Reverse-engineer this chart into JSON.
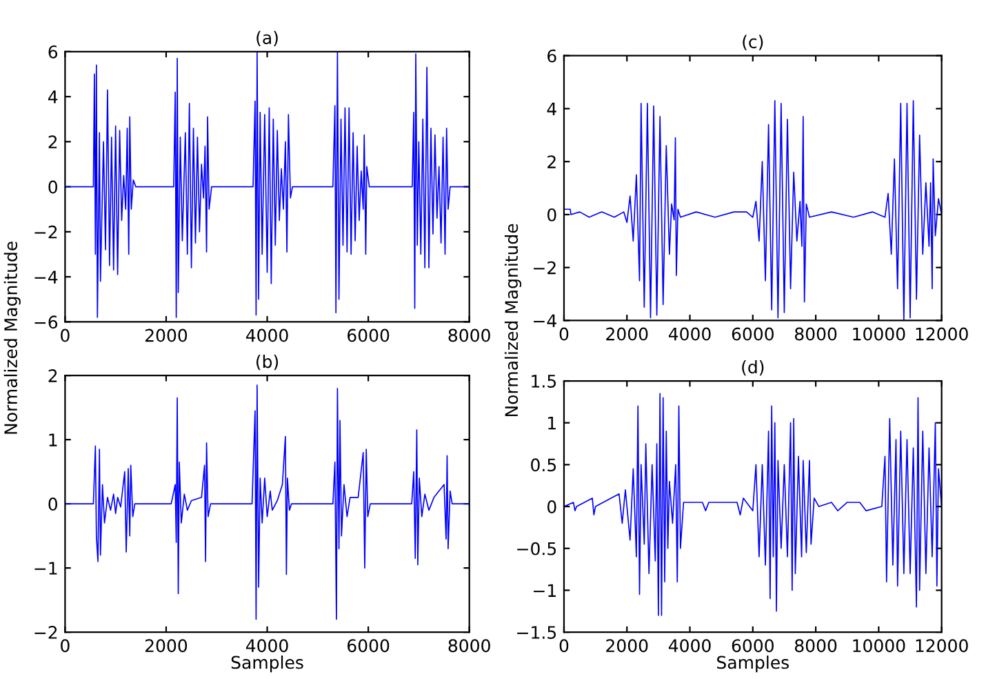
{
  "chart_data": [
    {
      "type": "line",
      "title": "(a)",
      "ylabel": "Normalized Magnitude",
      "xlim": [
        0,
        8000
      ],
      "ylim": [
        -6,
        6
      ],
      "xticks": [
        0,
        2000,
        4000,
        6000,
        8000
      ],
      "yticks": [
        -6,
        -4,
        -2,
        0,
        2,
        4,
        6
      ],
      "grid": false,
      "series": [
        {
          "color": "#0000ff",
          "x": [
            0,
            560,
            580,
            600,
            620,
            640,
            680,
            700,
            760,
            800,
            840,
            880,
            920,
            960,
            1000,
            1040,
            1080,
            1120,
            1160,
            1200,
            1230,
            1260,
            1280,
            1310,
            1350,
            1400,
            2150,
            2180,
            2200,
            2220,
            2240,
            2280,
            2320,
            2380,
            2420,
            2460,
            2500,
            2540,
            2580,
            2620,
            2660,
            2700,
            2740,
            2770,
            2800,
            2820,
            2850,
            2900,
            3720,
            3760,
            3780,
            3800,
            3830,
            3860,
            3900,
            3950,
            4000,
            4040,
            4080,
            4120,
            4160,
            4200,
            4240,
            4280,
            4320,
            4360,
            4390,
            4420,
            4460,
            4500,
            5300,
            5340,
            5360,
            5390,
            5420,
            5460,
            5500,
            5540,
            5580,
            5620,
            5660,
            5700,
            5740,
            5780,
            5820,
            5860,
            5900,
            5920,
            5950,
            5970,
            6020,
            6870,
            6900,
            6920,
            6940,
            6970,
            7000,
            7040,
            7080,
            7120,
            7160,
            7200,
            7240,
            7280,
            7320,
            7360,
            7400,
            7440,
            7480,
            7520,
            7550,
            7580,
            7620,
            8000
          ],
          "values": [
            0,
            0,
            5.0,
            -3.0,
            5.4,
            -5.8,
            2.4,
            -4.2,
            2.0,
            -2.8,
            4.3,
            -3.5,
            2.2,
            -3.7,
            2.7,
            -3.9,
            2.5,
            -1.5,
            0.5,
            -1.0,
            2.6,
            -3.0,
            3.1,
            -1.0,
            0.3,
            0,
            0,
            4.2,
            -5.8,
            5.7,
            -4.7,
            2.2,
            -2.4,
            2.4,
            -3.0,
            3.7,
            -3.6,
            2.6,
            -2.5,
            2.2,
            -2.0,
            1.0,
            -0.5,
            1.8,
            -2.9,
            3.1,
            -1.0,
            0,
            0,
            3.8,
            -5.7,
            6.0,
            -5.0,
            3.3,
            -3.0,
            3.2,
            -3.8,
            3.5,
            -4.3,
            3.0,
            -2.6,
            2.5,
            -1.5,
            0.8,
            -1.0,
            2.0,
            -2.9,
            3.2,
            -0.5,
            0,
            0,
            3.6,
            -5.6,
            6.0,
            -5.0,
            3.0,
            -2.6,
            3.5,
            -2.9,
            3.5,
            -3.0,
            2.4,
            -2.4,
            1.8,
            -1.5,
            0.7,
            -1.0,
            2.3,
            -3.0,
            0.9,
            0,
            0,
            3.3,
            -5.4,
            5.9,
            -2.6,
            2.0,
            -3.0,
            3.0,
            -3.6,
            5.3,
            -3.6,
            2.6,
            -2.1,
            2.3,
            -1.4,
            0.9,
            -2.5,
            2.2,
            -3.0,
            2.6,
            -1.0,
            0,
            0
          ]
        }
      ]
    },
    {
      "type": "line",
      "title": "(b)",
      "xlabel": "Samples",
      "xlim": [
        0,
        8000
      ],
      "ylim": [
        -2,
        2
      ],
      "xticks": [
        0,
        2000,
        4000,
        6000,
        8000
      ],
      "yticks": [
        -2,
        -1,
        0,
        1,
        2
      ],
      "grid": false,
      "series": [
        {
          "color": "#0000ff",
          "x": [
            0,
            560,
            600,
            620,
            650,
            680,
            700,
            740,
            780,
            840,
            900,
            960,
            1000,
            1040,
            1100,
            1180,
            1210,
            1250,
            1280,
            1300,
            1340,
            1380,
            2100,
            2180,
            2200,
            2220,
            2240,
            2260,
            2300,
            2360,
            2420,
            2500,
            2700,
            2760,
            2780,
            2800,
            2830,
            2880,
            3700,
            3760,
            3780,
            3800,
            3830,
            3860,
            3900,
            3950,
            4000,
            4060,
            4100,
            4200,
            4300,
            4360,
            4380,
            4400,
            4440,
            4480,
            5300,
            5340,
            5370,
            5390,
            5420,
            5440,
            5470,
            5520,
            5580,
            5640,
            5800,
            5900,
            5930,
            5960,
            5990,
            6040,
            6860,
            6900,
            6930,
            6960,
            6980,
            7010,
            7060,
            7120,
            7200,
            7300,
            7500,
            7540,
            7560,
            7580,
            7620,
            7660,
            8000
          ],
          "values": [
            0,
            0,
            0.9,
            -0.5,
            -0.9,
            0.85,
            -0.8,
            0.3,
            -0.3,
            0.1,
            -0.1,
            0.15,
            -0.15,
            0.1,
            -0.05,
            0.5,
            -0.75,
            0.55,
            -0.5,
            0.6,
            -0.2,
            0,
            0,
            0.3,
            -0.6,
            1.65,
            -1.4,
            0.65,
            -0.3,
            0.15,
            -0.1,
            0.05,
            0.1,
            0.6,
            -0.9,
            0.95,
            -0.2,
            0,
            0,
            1.45,
            -1.8,
            1.85,
            -1.3,
            0.4,
            -0.3,
            0.4,
            -0.2,
            0.2,
            -0.1,
            0.05,
            0.3,
            1.05,
            -1.1,
            0.4,
            -0.1,
            0,
            0,
            0.65,
            -1.8,
            1.8,
            -0.7,
            1.3,
            -0.5,
            0.3,
            -0.2,
            0.1,
            0.1,
            0.8,
            -1.0,
            0.85,
            -0.2,
            0,
            0,
            0.5,
            -0.85,
            1.15,
            -0.95,
            0.4,
            -0.2,
            0.15,
            -0.1,
            0.1,
            0.3,
            -0.55,
            0.75,
            -0.7,
            0.2,
            0,
            0
          ]
        }
      ]
    },
    {
      "type": "line",
      "title": "(c)",
      "ylabel": "Normalized Magnitude",
      "xlim": [
        0,
        12000
      ],
      "ylim": [
        -4,
        6
      ],
      "xticks": [
        0,
        2000,
        4000,
        6000,
        8000,
        10000,
        12000
      ],
      "yticks": [
        -4,
        -2,
        0,
        2,
        4,
        6
      ],
      "grid": false,
      "series": [
        {
          "color": "#0000ff",
          "x": [
            0,
            200,
            220,
            500,
            800,
            1200,
            1600,
            1900,
            2000,
            2100,
            2200,
            2300,
            2400,
            2450,
            2550,
            2650,
            2750,
            2850,
            2950,
            3050,
            3150,
            3250,
            3350,
            3420,
            3500,
            3540,
            3570,
            3620,
            3700,
            4200,
            4800,
            5400,
            5800,
            6000,
            6100,
            6200,
            6300,
            6400,
            6500,
            6600,
            6700,
            6800,
            6900,
            7000,
            7100,
            7200,
            7300,
            7400,
            7500,
            7560,
            7600,
            7640,
            7700,
            7800,
            8500,
            9200,
            9800,
            10200,
            10300,
            10400,
            10500,
            10600,
            10700,
            10800,
            10900,
            11000,
            11100,
            11200,
            11300,
            11400,
            11500,
            11600,
            11650,
            11700,
            11730,
            11800,
            11900,
            12000
          ],
          "values": [
            0.2,
            0.2,
            0,
            0.1,
            -0.1,
            0.1,
            -0.1,
            0.1,
            -0.3,
            0.7,
            -1.0,
            1.5,
            -2.5,
            4.2,
            -3.5,
            4.2,
            -3.9,
            4.1,
            -3.8,
            3.7,
            -3.4,
            2.6,
            -1.5,
            0.4,
            -0.2,
            2.9,
            -2.3,
            0.2,
            -0.1,
            0.1,
            -0.1,
            0.1,
            0.1,
            -0.1,
            0.5,
            -1.0,
            2.0,
            -2.5,
            3.4,
            -3.6,
            4.3,
            -3.9,
            4.2,
            -3.7,
            3.6,
            -2.8,
            1.6,
            -1.0,
            0.5,
            -1.2,
            3.7,
            -3.3,
            0.4,
            -0.1,
            0.1,
            -0.1,
            0.1,
            -0.1,
            0.8,
            -1.5,
            2.1,
            -2.8,
            4.2,
            -4.0,
            4.2,
            -3.9,
            4.3,
            -3.2,
            3.0,
            -1.5,
            1.2,
            -1.2,
            1.2,
            -2.8,
            2.1,
            -0.8,
            0.6,
            0
          ]
        }
      ]
    },
    {
      "type": "line",
      "title": "(d)",
      "xlabel": "Samples",
      "xlim": [
        0,
        12000
      ],
      "ylim": [
        -1.5,
        1.5
      ],
      "xticks": [
        0,
        2000,
        4000,
        6000,
        8000,
        10000,
        12000
      ],
      "yticks": [
        -1.5,
        -1,
        -0.5,
        0,
        0.5,
        1,
        1.5
      ],
      "grid": false,
      "series": [
        {
          "color": "#0000ff",
          "x": [
            0,
            300,
            350,
            400,
            900,
            950,
            1000,
            1750,
            1850,
            1950,
            2100,
            2200,
            2300,
            2350,
            2400,
            2450,
            2550,
            2600,
            2700,
            2800,
            2900,
            2950,
            3000,
            3050,
            3100,
            3150,
            3200,
            3250,
            3300,
            3350,
            3450,
            3550,
            3600,
            3650,
            3700,
            3800,
            4400,
            4500,
            4600,
            5500,
            5600,
            5700,
            6000,
            6100,
            6200,
            6300,
            6400,
            6500,
            6550,
            6600,
            6650,
            6700,
            6750,
            6800,
            6900,
            7000,
            7100,
            7200,
            7250,
            7300,
            7350,
            7450,
            7550,
            7600,
            7700,
            7800,
            7850,
            7950,
            8100,
            8500,
            8700,
            9000,
            9400,
            9600,
            10100,
            10200,
            10250,
            10350,
            10450,
            10550,
            10600,
            10700,
            10800,
            10900,
            11000,
            11100,
            11200,
            11250,
            11300,
            11400,
            11500,
            11600,
            11700,
            11800,
            11850,
            11900,
            12000
          ],
          "values": [
            0,
            0.05,
            -0.05,
            0,
            0.1,
            -0.1,
            0,
            0.15,
            -0.2,
            0.2,
            -0.4,
            0.45,
            -0.6,
            1.2,
            -1.05,
            0.5,
            -0.45,
            0.75,
            -0.8,
            0.5,
            -0.65,
            0.75,
            -1.3,
            1.35,
            -1.3,
            1.3,
            -0.9,
            0.9,
            -0.5,
            0.3,
            -0.2,
            0.5,
            -0.9,
            1.2,
            -0.5,
            0.05,
            0.05,
            -0.05,
            0.05,
            0.05,
            -0.1,
            0.1,
            -0.05,
            0.5,
            -0.6,
            0.5,
            -0.7,
            0.9,
            -1.1,
            1.2,
            -0.6,
            1.0,
            -1.25,
            0.55,
            -0.5,
            0.5,
            -0.6,
            1.0,
            -1.0,
            1.05,
            -0.8,
            0.6,
            -0.6,
            0.55,
            -0.55,
            0.55,
            -0.45,
            0.1,
            0,
            0.05,
            -0.05,
            0.05,
            0.05,
            -0.05,
            0,
            0.6,
            -0.9,
            1.05,
            -0.7,
            0.8,
            -0.95,
            0.9,
            -0.8,
            0.8,
            -0.8,
            0.7,
            -1.2,
            1.3,
            -1.0,
            0.9,
            -0.8,
            0.7,
            -0.6,
            1.0,
            -0.95,
            0.45,
            0
          ]
        }
      ]
    }
  ]
}
